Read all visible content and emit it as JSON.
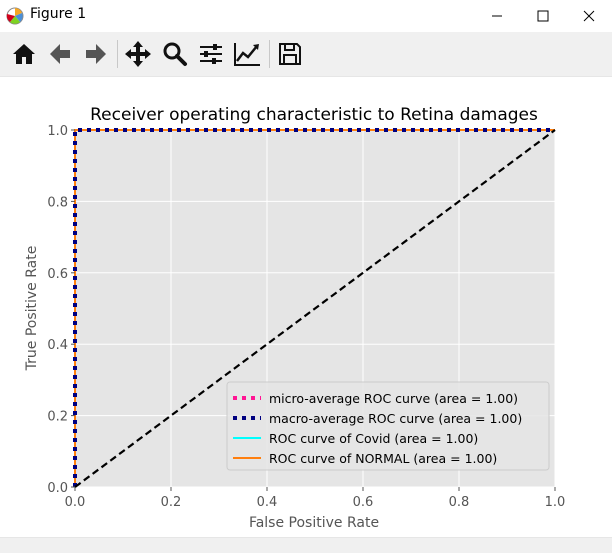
{
  "window": {
    "title": "Figure 1",
    "status": ""
  },
  "toolbar": {
    "buttons": [
      {
        "id": "home",
        "icon": "home-icon"
      },
      {
        "id": "back",
        "icon": "arrow-left-icon"
      },
      {
        "id": "forward",
        "icon": "arrow-right-icon"
      },
      {
        "id": "pan",
        "icon": "move-icon"
      },
      {
        "id": "zoom",
        "icon": "magnifier-icon"
      },
      {
        "id": "subplots",
        "icon": "sliders-icon"
      },
      {
        "id": "edit",
        "icon": "chart-edit-icon"
      },
      {
        "id": "save",
        "icon": "floppy-disk-icon"
      }
    ]
  },
  "colors": {
    "axes_bg": "#e5e5e5",
    "grid": "#ffffff",
    "micro": "#ff1493",
    "macro": "#000080",
    "covid": "#00ffff",
    "normal": "#ff7f0e",
    "diagonal": "#000000"
  },
  "chart_data": {
    "type": "line",
    "title": "Receiver operating characteristic to Retina damages",
    "xlabel": "False Positive Rate",
    "ylabel": "True Positive Rate",
    "xlim": [
      0.0,
      1.0
    ],
    "ylim": [
      0.0,
      1.0
    ],
    "xticks": [
      "0.0",
      "0.2",
      "0.4",
      "0.6",
      "0.8",
      "1.0"
    ],
    "yticks": [
      "0.0",
      "0.2",
      "0.4",
      "0.6",
      "0.8",
      "1.0"
    ],
    "grid": true,
    "legend_position": "lower-right",
    "series": [
      {
        "name": "micro-average ROC curve (area = 1.00)",
        "style": "dotted",
        "color": "#ff1493",
        "x": [
          0.0,
          0.0,
          1.0
        ],
        "y": [
          0.0,
          1.0,
          1.0
        ]
      },
      {
        "name": "macro-average ROC curve (area = 1.00)",
        "style": "dotted",
        "color": "#000080",
        "x": [
          0.0,
          0.0,
          1.0
        ],
        "y": [
          0.0,
          1.0,
          1.0
        ]
      },
      {
        "name": "ROC curve of Covid (area = 1.00)",
        "style": "solid",
        "color": "#00ffff",
        "x": [
          0.0,
          0.0,
          1.0
        ],
        "y": [
          0.0,
          1.0,
          1.0
        ]
      },
      {
        "name": "ROC curve of NORMAL (area = 1.00)",
        "style": "solid",
        "color": "#ff7f0e",
        "x": [
          0.0,
          0.0,
          1.0
        ],
        "y": [
          0.0,
          1.0,
          1.0
        ]
      }
    ],
    "diagonal": {
      "x": [
        0.0,
        1.0
      ],
      "y": [
        0.0,
        1.0
      ],
      "style": "dashed",
      "color": "#000000"
    }
  }
}
